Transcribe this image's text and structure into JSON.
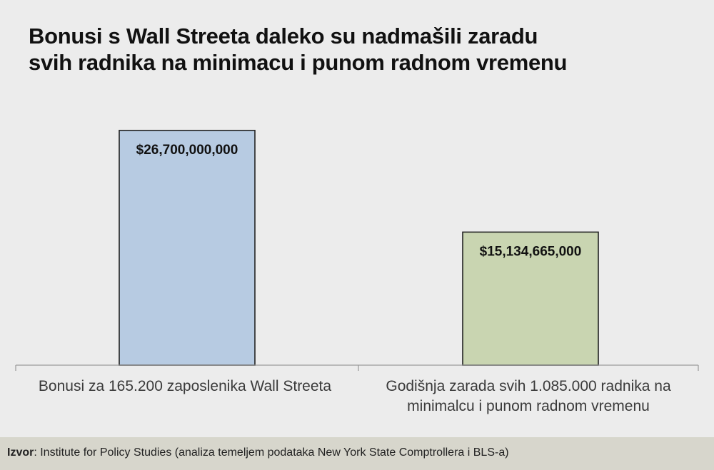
{
  "chart_data": {
    "type": "bar",
    "title_lines": [
      "Bonusi s Wall Streeta daleko su nadmašili zaradu",
      "svih radnika na minimacu i punom radnom vremenu"
    ],
    "categories": [
      [
        "Bonusi za 165.200 zaposlenika Wall Streeta"
      ],
      [
        "Godišnja zarada svih 1.085.000 radnika na",
        "minimalcu i punom radnom vremenu"
      ]
    ],
    "values": [
      26700000000,
      15134665000
    ],
    "value_labels": [
      "$26,700,000,000",
      "$15,134,665,000"
    ],
    "ylim": [
      0,
      30500000000
    ],
    "grid": false,
    "legend": "none",
    "colors": [
      "#b7cbe2",
      "#c9d5b1"
    ],
    "bar_border_color": "#222222"
  },
  "source": {
    "label": "Izvor",
    "text": ": Institute for Policy Studies (analiza temeljem podataka New York State Comptrollera i BLS-a)"
  }
}
